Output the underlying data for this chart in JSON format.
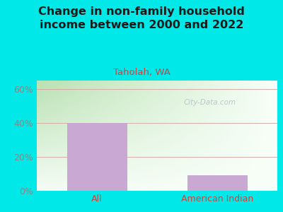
{
  "title": "Change in non-family household\nincome between 2000 and 2022",
  "subtitle": "Taholah, WA",
  "categories": [
    "All",
    "American Indian"
  ],
  "values": [
    40,
    9
  ],
  "bar_color": "#c9a8d4",
  "title_color": "#1a1a1a",
  "subtitle_color": "#cc4444",
  "tick_label_color": "#cc4444",
  "axis_label_color": "#888888",
  "background_outer": "#00e8e8",
  "plot_bg_left": "#c8e8c0",
  "plot_bg_right": "#f8fff8",
  "ylim": [
    0,
    65
  ],
  "yticks": [
    0,
    20,
    40,
    60
  ],
  "ytick_labels": [
    "0%",
    "20%",
    "40%",
    "60%"
  ],
  "watermark": "City-Data.com",
  "title_fontsize": 11.5,
  "subtitle_fontsize": 9.5,
  "tick_fontsize": 9
}
